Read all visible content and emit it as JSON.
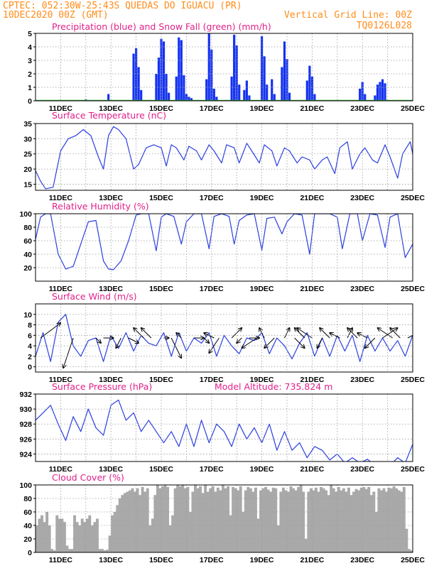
{
  "header": {
    "line1_left": "CPTEC:   052:30W-25:43S   QUEDAS DO IGUACU (PR)",
    "line2_left": "10DEC2020 00Z (GMT)",
    "line2_right": "Vertical Grid Line: 00Z",
    "line3_right": "TQ0126L028"
  },
  "colors": {
    "header_text": "#ff8c1a",
    "panel_title": "#e0208a",
    "series_line": "#2a3fe0",
    "precip_bar": "#1432f0",
    "snow_bar": "#2aa02a",
    "cloud_fill": "#a9a9a9"
  },
  "x_axis": {
    "labels": [
      "11DEC",
      "13DEC",
      "15DEC",
      "17DEC",
      "19DEC",
      "21DEC",
      "23DEC",
      "25DEC"
    ],
    "label_days": [
      11,
      13,
      15,
      17,
      19,
      21,
      23,
      25
    ],
    "grid_days": [
      11,
      12,
      13,
      14,
      15,
      16,
      17,
      18,
      19,
      20,
      21,
      22,
      23,
      24,
      25
    ],
    "start_day": 10,
    "end_day": 25
  },
  "chart_data": [
    {
      "id": "precip",
      "type": "bar",
      "title": "Precipitation (blue) and Snow Fall (green) (mm/h)",
      "ylim": [
        0,
        5
      ],
      "yticks": [
        0,
        1,
        2,
        3,
        4,
        5
      ],
      "grid": true,
      "series": [
        {
          "name": "Precipitation",
          "color": "#1432f0"
        },
        {
          "name": "Snow Fall",
          "color": "#2aa02a"
        }
      ],
      "x": [
        12.0,
        12.9,
        13.9,
        14.0,
        14.1,
        14.2,
        14.8,
        14.9,
        15.0,
        15.1,
        15.2,
        15.3,
        15.6,
        15.7,
        15.8,
        15.9,
        16.0,
        16.1,
        16.2,
        16.8,
        16.9,
        17.0,
        17.1,
        17.2,
        17.8,
        17.9,
        18.0,
        18.1,
        18.3,
        18.4,
        18.5,
        19.0,
        19.1,
        19.2,
        19.4,
        19.5,
        19.8,
        19.9,
        20.0,
        20.1,
        20.8,
        20.9,
        21.0,
        21.1,
        22.9,
        23.0,
        23.1,
        23.5,
        23.6,
        23.7,
        23.8,
        23.9
      ],
      "values": [
        0.1,
        0.5,
        3.5,
        3.9,
        2.5,
        0.8,
        2.0,
        3.2,
        4.6,
        4.4,
        2.0,
        0.6,
        1.8,
        4.7,
        4.5,
        1.9,
        0.5,
        0.3,
        0.2,
        1.6,
        5.0,
        3.8,
        0.9,
        0.3,
        1.8,
        4.9,
        4.1,
        1.2,
        0.8,
        1.5,
        0.4,
        4.8,
        3.3,
        1.2,
        1.6,
        0.5,
        2.5,
        4.4,
        3.1,
        0.6,
        1.5,
        2.6,
        1.8,
        0.5,
        0.9,
        1.4,
        0.5,
        0.4,
        1.2,
        1.4,
        1.6,
        1.3
      ],
      "snow": []
    },
    {
      "id": "temperature",
      "type": "line",
      "title": "Surface Temperature (nC)",
      "ylim": [
        13,
        35
      ],
      "yticks": [
        15,
        20,
        25,
        30,
        35
      ],
      "grid": true,
      "x": [
        10.0,
        10.2,
        10.4,
        10.7,
        11.0,
        11.3,
        11.6,
        11.9,
        12.2,
        12.5,
        12.7,
        12.9,
        13.1,
        13.3,
        13.6,
        13.9,
        14.1,
        14.4,
        14.7,
        15.0,
        15.2,
        15.4,
        15.6,
        15.9,
        16.1,
        16.4,
        16.6,
        16.9,
        17.1,
        17.4,
        17.6,
        17.9,
        18.1,
        18.4,
        18.6,
        18.9,
        19.1,
        19.4,
        19.6,
        19.9,
        20.1,
        20.4,
        20.6,
        20.9,
        21.1,
        21.4,
        21.6,
        21.9,
        22.1,
        22.4,
        22.6,
        22.9,
        23.1,
        23.4,
        23.6,
        23.9,
        24.1,
        24.4,
        24.6,
        24.9,
        25.0
      ],
      "values": [
        19.5,
        16,
        13.5,
        14,
        26,
        30,
        31,
        33,
        31,
        24,
        20,
        31,
        34,
        33,
        30,
        20,
        21.5,
        27,
        28,
        27,
        21,
        28,
        27,
        23,
        27.5,
        26,
        23,
        28,
        26,
        22,
        28,
        27,
        22,
        28.5,
        26,
        22,
        28,
        26,
        21,
        27,
        26,
        22,
        24,
        23,
        20,
        23,
        24,
        18.5,
        27,
        29,
        20,
        25,
        27,
        23,
        22,
        28,
        24,
        17,
        25,
        29,
        25
      ]
    },
    {
      "id": "humidity",
      "type": "line",
      "title": "Relative Humidity (%)",
      "ylim": [
        0,
        100
      ],
      "yticks": [
        20,
        40,
        60,
        80,
        100
      ],
      "grid": true,
      "x": [
        10.0,
        10.2,
        10.4,
        10.6,
        10.9,
        11.2,
        11.5,
        11.8,
        12.1,
        12.4,
        12.7,
        12.9,
        13.1,
        13.4,
        13.7,
        14.0,
        14.2,
        14.5,
        14.8,
        15.0,
        15.2,
        15.5,
        15.8,
        16.0,
        16.3,
        16.6,
        16.9,
        17.1,
        17.4,
        17.7,
        17.9,
        18.1,
        18.4,
        18.7,
        19.0,
        19.2,
        19.5,
        19.8,
        20.0,
        20.3,
        20.6,
        20.9,
        21.1,
        21.4,
        21.7,
        22.0,
        22.2,
        22.5,
        22.8,
        23.0,
        23.3,
        23.6,
        23.9,
        24.1,
        24.4,
        24.7,
        25.0
      ],
      "values": [
        62,
        95,
        100,
        100,
        40,
        18,
        22,
        55,
        88,
        90,
        30,
        18,
        17,
        30,
        60,
        98,
        100,
        100,
        45,
        95,
        100,
        96,
        55,
        88,
        100,
        100,
        48,
        96,
        100,
        96,
        55,
        90,
        98,
        100,
        46,
        93,
        95,
        70,
        88,
        100,
        98,
        40,
        100,
        100,
        100,
        95,
        48,
        100,
        100,
        60,
        100,
        98,
        50,
        95,
        100,
        35,
        55
      ]
    },
    {
      "id": "wind",
      "type": "line",
      "title": "Surface Wind (m/s)",
      "ylim": [
        -1,
        12
      ],
      "yticks": [
        0,
        2,
        4,
        6,
        8,
        10
      ],
      "grid": true,
      "x": [
        10.0,
        10.3,
        10.6,
        10.9,
        11.2,
        11.5,
        11.8,
        12.1,
        12.4,
        12.7,
        13.0,
        13.3,
        13.6,
        13.9,
        14.2,
        14.5,
        14.8,
        15.1,
        15.4,
        15.7,
        16.0,
        16.3,
        16.6,
        16.9,
        17.2,
        17.5,
        17.8,
        18.1,
        18.4,
        18.7,
        19.0,
        19.3,
        19.6,
        19.9,
        20.2,
        20.5,
        20.8,
        21.1,
        21.4,
        21.7,
        22.0,
        22.3,
        22.6,
        22.9,
        23.2,
        23.5,
        23.8,
        24.1,
        24.4,
        24.7,
        25.0
      ],
      "values": [
        2,
        6.5,
        1,
        8.5,
        10,
        4,
        2,
        5,
        5.5,
        1,
        6,
        3.5,
        6.5,
        3,
        6,
        4.5,
        4,
        6.5,
        2,
        6.5,
        3,
        5.5,
        4.5,
        6.5,
        2,
        6,
        4,
        2.5,
        5.5,
        5,
        6.5,
        2.5,
        5.5,
        4,
        1.5,
        4.5,
        6.5,
        2,
        5.5,
        2,
        6,
        3,
        6,
        1,
        6,
        3,
        5.5,
        3,
        5,
        2,
        6
      ],
      "arrow_x": [
        10.2,
        11.5,
        12.4,
        12.7,
        13.4,
        13.7,
        14.3,
        14.6,
        15.1,
        15.4,
        15.8,
        16.3,
        16.7,
        17.1,
        17.3,
        17.8,
        18.2,
        18.5,
        18.8,
        19.1,
        19.5,
        19.9,
        20.3,
        20.7,
        21.0,
        21.4,
        21.7,
        22.1,
        22.4,
        22.8,
        23.2,
        23.5,
        23.8,
        24.2,
        24.5,
        24.8
      ],
      "arrow_u": [
        4,
        -2,
        1,
        2,
        -1,
        2,
        -2,
        -2,
        1,
        2,
        -1,
        2,
        1,
        -2,
        -2,
        2,
        -1,
        2,
        -3,
        -1,
        -2,
        1,
        2,
        -2,
        -3,
        -1,
        -2,
        -2,
        1,
        -2,
        -2,
        -2,
        3,
        -3,
        -2,
        2
      ],
      "arrow_v": [
        3,
        -6,
        -1,
        0,
        -2,
        -1,
        2,
        2,
        0,
        -4,
        1,
        0,
        -1,
        1,
        -3,
        2,
        -1,
        0,
        -2,
        2,
        -2,
        2,
        -2,
        2,
        2,
        -2,
        2,
        1,
        2,
        2,
        1,
        -2,
        2,
        2,
        2,
        1
      ]
    },
    {
      "id": "pressure",
      "type": "line",
      "title": "Surface Pressure (hPa)",
      "annotation": "Model Altitude: 735.824 m",
      "ylim": [
        923,
        932
      ],
      "yticks": [
        924,
        926,
        928,
        930,
        932
      ],
      "grid": true,
      "x": [
        10.0,
        10.3,
        10.6,
        10.9,
        11.2,
        11.5,
        11.8,
        12.1,
        12.4,
        12.7,
        13.0,
        13.3,
        13.6,
        13.9,
        14.2,
        14.5,
        14.8,
        15.1,
        15.4,
        15.7,
        16.0,
        16.3,
        16.6,
        16.9,
        17.2,
        17.5,
        17.8,
        18.1,
        18.4,
        18.7,
        19.0,
        19.3,
        19.6,
        19.9,
        20.2,
        20.5,
        20.8,
        21.1,
        21.4,
        21.7,
        22.0,
        22.3,
        22.6,
        22.9,
        23.2,
        23.5,
        23.8,
        24.1,
        24.4,
        24.7,
        25.0
      ],
      "values": [
        928.5,
        929.5,
        930.5,
        928,
        925.8,
        929,
        927,
        930,
        927.5,
        926.5,
        930.5,
        931.2,
        928.5,
        929.5,
        927,
        928.5,
        927,
        925.5,
        927,
        925,
        928,
        925,
        928.5,
        925.5,
        928,
        927,
        925,
        928,
        926,
        927.5,
        925.5,
        928,
        924.5,
        927,
        924.5,
        925.5,
        923.5,
        925,
        924.5,
        923.2,
        924,
        922.8,
        923.5,
        922.8,
        923.3,
        922.5,
        923,
        922.5,
        923.5,
        922.8,
        925.3
      ]
    },
    {
      "id": "cloud",
      "type": "area",
      "title": "Cloud Cover (%)",
      "ylim": [
        0,
        100
      ],
      "yticks": [
        0,
        20,
        40,
        60,
        80,
        100
      ],
      "grid": true,
      "color": "#a9a9a9",
      "x": [
        10.0,
        10.1,
        10.2,
        10.3,
        10.4,
        10.5,
        10.6,
        10.7,
        10.8,
        10.9,
        11.0,
        11.1,
        11.2,
        11.3,
        11.4,
        11.5,
        11.6,
        11.7,
        11.8,
        11.9,
        12.0,
        12.1,
        12.2,
        12.3,
        12.4,
        12.5,
        12.6,
        12.7,
        12.8,
        12.9,
        13.0,
        13.1,
        13.2,
        13.3,
        13.4,
        13.5,
        13.6,
        13.7,
        13.8,
        13.9,
        14.0,
        14.1,
        14.2,
        14.3,
        14.4,
        14.5,
        14.6,
        14.7,
        14.8,
        14.9,
        15.0,
        15.1,
        15.2,
        15.3,
        15.4,
        15.5,
        15.6,
        15.7,
        15.8,
        15.9,
        16.0,
        16.1,
        16.2,
        16.3,
        16.4,
        16.5,
        16.6,
        16.7,
        16.8,
        16.9,
        17.0,
        17.1,
        17.2,
        17.3,
        17.4,
        17.5,
        17.6,
        17.7,
        17.8,
        17.9,
        18.0,
        18.1,
        18.2,
        18.3,
        18.4,
        18.5,
        18.6,
        18.7,
        18.8,
        18.9,
        19.0,
        19.1,
        19.2,
        19.3,
        19.4,
        19.5,
        19.6,
        19.7,
        19.8,
        19.9,
        20.0,
        20.1,
        20.2,
        20.3,
        20.4,
        20.5,
        20.6,
        20.7,
        20.8,
        20.9,
        21.0,
        21.1,
        21.2,
        21.3,
        21.4,
        21.5,
        21.6,
        21.7,
        21.8,
        21.9,
        22.0,
        22.1,
        22.2,
        22.3,
        22.4,
        22.5,
        22.6,
        22.7,
        22.8,
        22.9,
        23.0,
        23.1,
        23.2,
        23.3,
        23.4,
        23.5,
        23.6,
        23.7,
        23.8,
        23.9,
        24.0,
        24.1,
        24.2,
        24.3,
        24.4,
        24.5,
        24.6,
        24.7,
        24.8,
        24.9,
        25.0
      ],
      "values": [
        40,
        50,
        55,
        45,
        60,
        40,
        5,
        3,
        55,
        50,
        50,
        45,
        10,
        5,
        5,
        55,
        45,
        40,
        50,
        45,
        50,
        55,
        40,
        45,
        50,
        5,
        5,
        3,
        4,
        25,
        55,
        60,
        70,
        80,
        85,
        88,
        90,
        92,
        95,
        90,
        95,
        85,
        97,
        90,
        95,
        40,
        50,
        85,
        100,
        95,
        98,
        100,
        97,
        40,
        55,
        95,
        100,
        98,
        100,
        95,
        97,
        60,
        90,
        100,
        95,
        98,
        88,
        100,
        90,
        95,
        98,
        90,
        96,
        92,
        100,
        95,
        98,
        55,
        97,
        95,
        92,
        98,
        60,
        92,
        97,
        95,
        90,
        96,
        50,
        92,
        95,
        97,
        93,
        90,
        96,
        95,
        40,
        90,
        96,
        92,
        90,
        98,
        95,
        92,
        97,
        100,
        90,
        20,
        90,
        95,
        92,
        96,
        90,
        97,
        95,
        92,
        85,
        100,
        95,
        90,
        97,
        92,
        95,
        90,
        96,
        85,
        90,
        94,
        92,
        96,
        97,
        94,
        97,
        85,
        90,
        60,
        95,
        92,
        95,
        90,
        96,
        95,
        98,
        95,
        92,
        90,
        97,
        35,
        5,
        3,
        2
      ]
    }
  ]
}
